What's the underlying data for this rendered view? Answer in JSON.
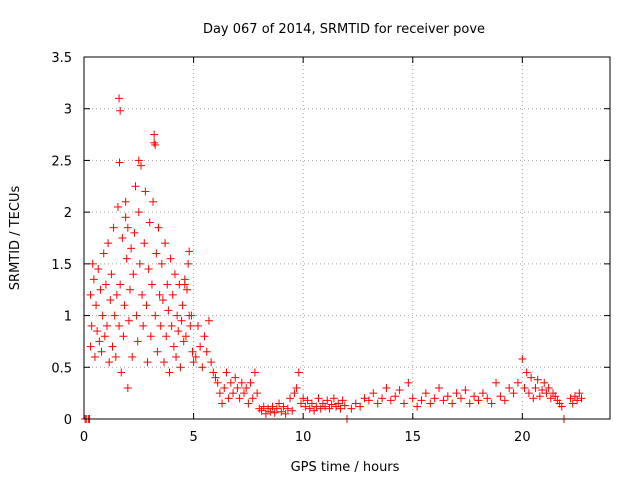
{
  "chart_data": {
    "type": "scatter",
    "title": "Day 067 of 2014, SRMTID for receiver pove",
    "xlabel": "GPS time / hours",
    "ylabel": "SRMTID / TECUs",
    "xlim": [
      0,
      24
    ],
    "ylim": [
      0,
      3.5
    ],
    "xticks": [
      0,
      5,
      10,
      15,
      20
    ],
    "xtick_labels": [
      "0",
      "5",
      "10",
      "15",
      "20"
    ],
    "yticks": [
      0,
      0.5,
      1,
      1.5,
      2,
      2.5,
      3,
      3.5
    ],
    "ytick_labels": [
      "0",
      "0.5",
      "1",
      "1.5",
      "2",
      "2.5",
      "3",
      "3.5"
    ],
    "grid": true,
    "marker": "+",
    "series": [
      {
        "name": "SRMTID",
        "color": "#ff0000",
        "x": [
          0.05,
          0.1,
          0.2,
          0.3,
          0.3,
          0.35,
          0.4,
          0.45,
          0.5,
          0.55,
          0.6,
          0.65,
          0.7,
          0.75,
          0.8,
          0.85,
          0.9,
          0.95,
          1.0,
          1.05,
          1.1,
          1.15,
          1.2,
          1.25,
          1.3,
          1.35,
          1.4,
          1.45,
          1.5,
          1.55,
          1.6,
          1.62,
          1.65,
          1.7,
          1.75,
          1.8,
          1.85,
          1.9,
          1.95,
          2.0,
          2.05,
          2.1,
          2.15,
          2.2,
          2.25,
          2.3,
          2.35,
          2.4,
          2.45,
          2.5,
          2.55,
          2.6,
          2.65,
          2.7,
          2.75,
          2.8,
          2.85,
          2.9,
          2.95,
          3.0,
          3.05,
          3.1,
          3.15,
          3.2,
          3.25,
          3.3,
          3.35,
          3.4,
          3.45,
          3.5,
          3.55,
          3.6,
          3.65,
          3.7,
          3.75,
          3.8,
          3.85,
          3.9,
          3.95,
          4.0,
          4.05,
          4.1,
          4.15,
          4.2,
          4.25,
          4.3,
          4.35,
          4.4,
          4.45,
          4.5,
          4.55,
          4.6,
          4.65,
          4.7,
          4.75,
          4.8,
          4.85,
          4.9,
          4.95,
          5.0,
          5.1,
          5.2,
          5.3,
          5.4,
          5.5,
          5.6,
          5.7,
          5.8,
          5.9,
          6.0,
          6.1,
          6.2,
          6.3,
          6.4,
          6.5,
          6.6,
          6.7,
          6.8,
          6.9,
          7.0,
          7.1,
          7.2,
          7.3,
          7.4,
          7.5,
          7.6,
          7.7,
          7.8,
          7.9,
          8.0,
          8.1,
          8.2,
          8.3,
          8.4,
          8.5,
          8.6,
          8.7,
          8.8,
          8.9,
          9.0,
          9.1,
          9.2,
          9.3,
          9.4,
          9.5,
          9.6,
          9.7,
          9.8,
          9.9,
          10.0,
          10.1,
          10.2,
          10.3,
          10.4,
          10.5,
          10.6,
          10.7,
          10.8,
          10.9,
          11.0,
          11.1,
          11.2,
          11.3,
          11.4,
          11.5,
          11.6,
          11.7,
          11.8,
          11.9,
          12.0,
          12.2,
          12.4,
          12.6,
          12.8,
          13.0,
          13.2,
          13.4,
          13.6,
          13.8,
          14.0,
          14.2,
          14.4,
          14.6,
          14.8,
          15.0,
          15.2,
          15.4,
          15.6,
          15.8,
          16.0,
          16.2,
          16.4,
          16.6,
          16.8,
          17.0,
          17.2,
          17.4,
          17.6,
          17.8,
          18.0,
          18.2,
          18.4,
          18.6,
          18.8,
          19.0,
          19.2,
          19.4,
          19.6,
          19.8,
          20.0,
          20.1,
          20.2,
          20.3,
          20.4,
          20.5,
          20.6,
          20.7,
          20.8,
          20.9,
          21.0,
          21.1,
          21.2,
          21.3,
          21.4,
          21.5,
          21.6,
          21.7,
          21.8,
          21.9,
          22.2,
          22.3,
          22.4,
          22.5,
          22.6,
          22.7,
          1.6,
          1.65,
          2.5,
          3.2,
          3.25,
          0.25,
          1.9,
          2.0,
          4.8,
          4.6
        ],
        "y": [
          0.0,
          0.0,
          0.0,
          0.7,
          1.2,
          0.9,
          1.5,
          1.35,
          0.6,
          1.1,
          0.85,
          1.45,
          0.75,
          1.25,
          0.65,
          1.0,
          1.6,
          0.8,
          1.3,
          0.9,
          1.7,
          0.55,
          1.15,
          1.4,
          0.7,
          1.85,
          1.0,
          0.6,
          1.2,
          2.05,
          0.9,
          2.48,
          1.3,
          0.45,
          1.75,
          0.8,
          1.1,
          2.1,
          1.55,
          0.3,
          0.95,
          1.25,
          1.65,
          0.6,
          1.4,
          1.8,
          2.25,
          1.0,
          0.75,
          2.0,
          1.5,
          2.45,
          1.2,
          0.9,
          1.7,
          2.2,
          1.1,
          0.55,
          1.45,
          1.9,
          0.8,
          1.3,
          2.1,
          2.67,
          1.0,
          1.6,
          0.65,
          1.85,
          1.2,
          0.9,
          1.5,
          1.15,
          0.55,
          1.7,
          0.8,
          1.3,
          1.05,
          0.45,
          1.55,
          0.9,
          1.2,
          0.7,
          1.4,
          0.6,
          1.0,
          0.85,
          1.3,
          0.5,
          0.95,
          1.1,
          0.75,
          1.35,
          0.8,
          1.25,
          1.5,
          1.62,
          0.9,
          1.0,
          0.65,
          0.55,
          0.6,
          0.9,
          0.7,
          0.5,
          0.8,
          0.65,
          0.95,
          0.55,
          0.45,
          0.4,
          0.35,
          0.25,
          0.15,
          0.3,
          0.45,
          0.2,
          0.35,
          0.25,
          0.4,
          0.3,
          0.2,
          0.35,
          0.25,
          0.3,
          0.15,
          0.35,
          0.2,
          0.45,
          0.25,
          0.1,
          0.08,
          0.12,
          0.05,
          0.1,
          0.07,
          0.12,
          0.06,
          0.1,
          0.15,
          0.07,
          0.12,
          0.05,
          0.1,
          0.2,
          0.08,
          0.25,
          0.3,
          0.45,
          0.15,
          0.2,
          0.12,
          0.18,
          0.1,
          0.15,
          0.08,
          0.12,
          0.2,
          0.1,
          0.15,
          0.12,
          0.18,
          0.1,
          0.14,
          0.2,
          0.12,
          0.15,
          0.1,
          0.18,
          0.13,
          0.0,
          0.1,
          0.15,
          0.12,
          0.2,
          0.18,
          0.25,
          0.15,
          0.2,
          0.3,
          0.18,
          0.22,
          0.28,
          0.15,
          0.35,
          0.2,
          0.12,
          0.18,
          0.25,
          0.15,
          0.2,
          0.3,
          0.18,
          0.22,
          0.15,
          0.25,
          0.2,
          0.28,
          0.15,
          0.22,
          0.18,
          0.25,
          0.2,
          0.15,
          0.35,
          0.22,
          0.18,
          0.3,
          0.25,
          0.35,
          0.58,
          0.3,
          0.45,
          0.25,
          0.4,
          0.2,
          0.3,
          0.38,
          0.22,
          0.28,
          0.35,
          0.25,
          0.3,
          0.2,
          0.25,
          0.22,
          0.18,
          0.15,
          0.12,
          0.0,
          0.2,
          0.15,
          0.22,
          0.18,
          0.25,
          0.2,
          3.1,
          2.98,
          2.5,
          2.75,
          2.65,
          0.0,
          1.95,
          1.85,
          1.0,
          1.3
        ]
      }
    ]
  }
}
